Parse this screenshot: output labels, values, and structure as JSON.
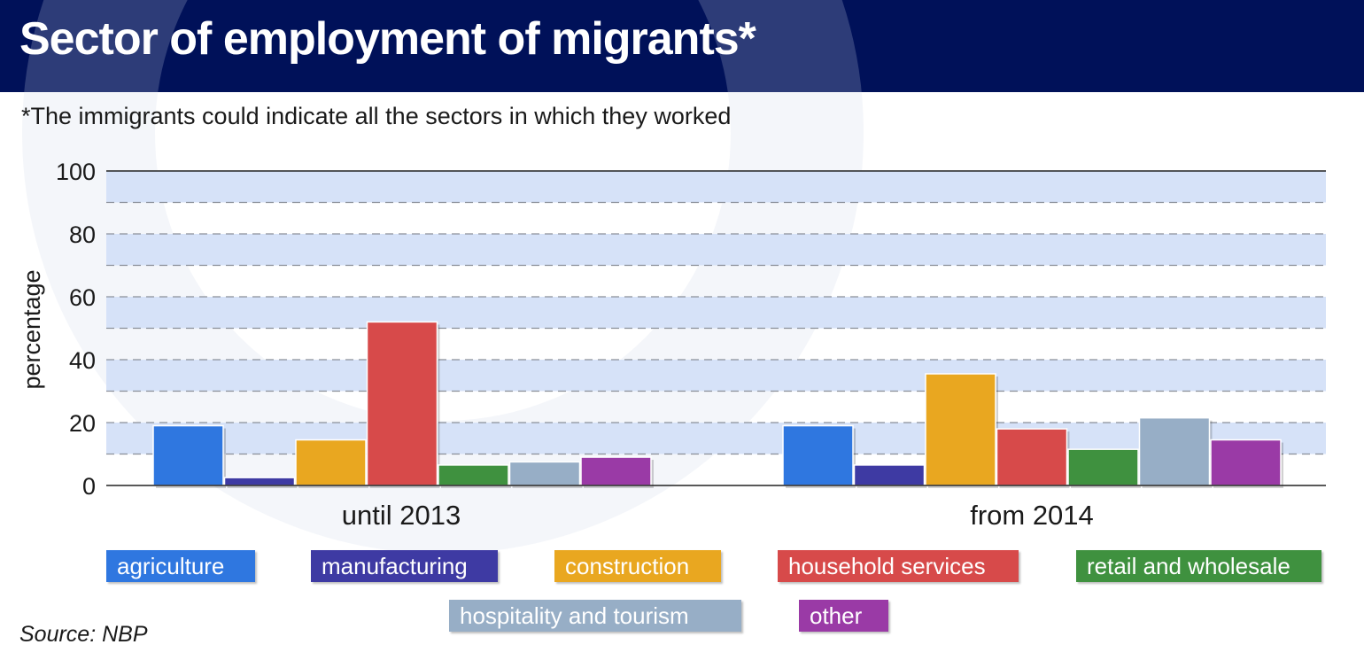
{
  "title": "Sector of employment of migrants*",
  "subtitle": "*The immigrants could indicate all the sectors in which they worked",
  "source": "Source: NBP",
  "chart_data": {
    "type": "bar",
    "categories": [
      "until 2013",
      "from 2014"
    ],
    "ylabel": "percentage",
    "xlabel": "",
    "ylim": [
      0,
      100
    ],
    "yticks": [
      0,
      20,
      40,
      60,
      80,
      100
    ],
    "grid": true,
    "legend_position": "bottom",
    "series": [
      {
        "name": "agriculture",
        "color": "#2f77e0",
        "values": [
          19,
          19
        ]
      },
      {
        "name": "manufacturing",
        "color": "#3e3aa3",
        "values": [
          2.5,
          6.5
        ]
      },
      {
        "name": "construction",
        "color": "#e9a720",
        "values": [
          14.5,
          35.5
        ]
      },
      {
        "name": "household services",
        "color": "#d74a4a",
        "values": [
          52,
          18
        ]
      },
      {
        "name": "retail and wholesale",
        "color": "#3f913f",
        "values": [
          6.5,
          11.5
        ]
      },
      {
        "name": "hospitality and tourism",
        "color": "#97aec6",
        "values": [
          7.5,
          21.5
        ]
      },
      {
        "name": "other",
        "color": "#9a3aa6",
        "values": [
          9,
          14.5
        ]
      }
    ]
  }
}
